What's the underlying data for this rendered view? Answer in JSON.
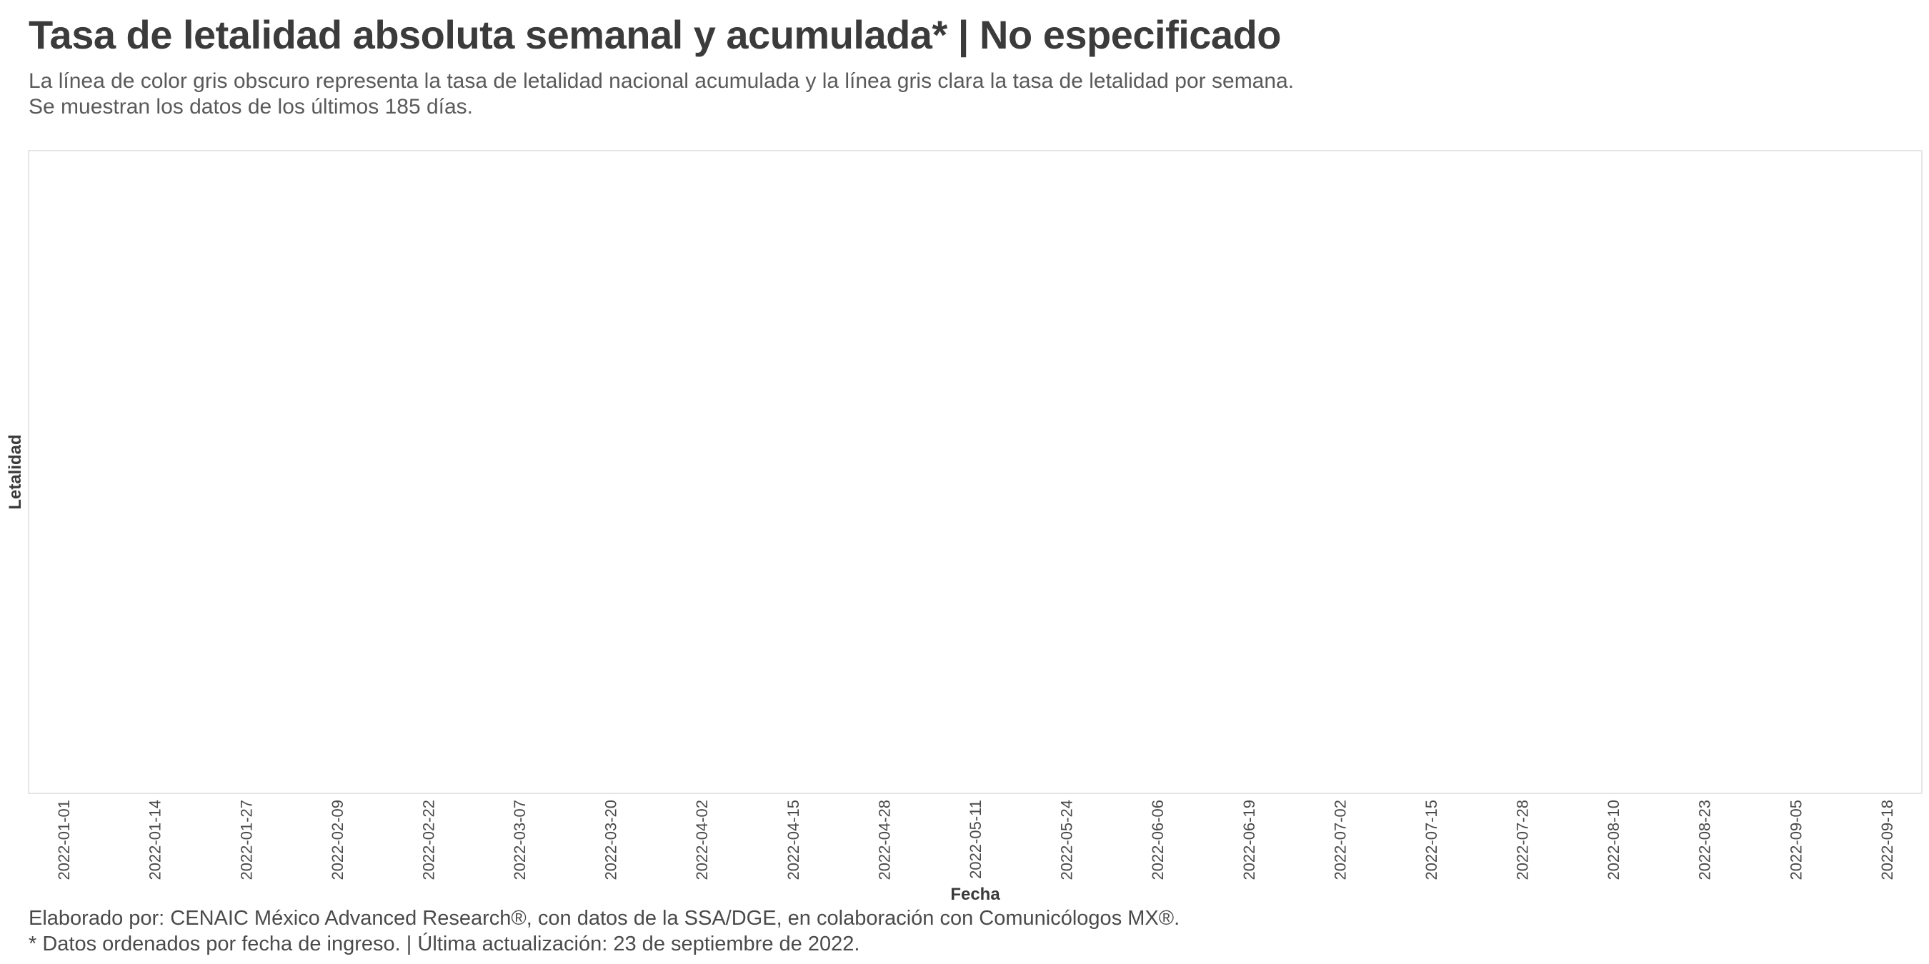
{
  "header": {
    "title": "Tasa de letalidad absoluta semanal y acumulada* | No especificado",
    "subtitle_line1": "La línea de color gris obscuro representa la tasa de letalidad nacional acumulada y la línea gris clara la tasa de letalidad por semana.",
    "subtitle_line2": "Se muestran los datos de los últimos 185 días."
  },
  "chart_data": {
    "type": "line",
    "xlabel": "Fecha",
    "ylabel": "Letalidad",
    "x_ticks": [
      "2022-01-01",
      "2022-01-14",
      "2022-01-27",
      "2022-02-09",
      "2022-02-22",
      "2022-03-07",
      "2022-03-20",
      "2022-04-02",
      "2022-04-15",
      "2022-04-28",
      "2022-05-11",
      "2022-05-24",
      "2022-06-06",
      "2022-06-19",
      "2022-07-02",
      "2022-07-15",
      "2022-07-28",
      "2022-08-10",
      "2022-08-23",
      "2022-09-05",
      "2022-09-18"
    ],
    "xlim": [
      "2021-12-27",
      "2022-09-23"
    ],
    "series": [],
    "grid": false,
    "colors": {
      "panel_border": "#e6e6e6",
      "text": "#3a3a3a"
    }
  },
  "footer": {
    "caption_line1": "Elaborado por: CENAIC México Advanced Research®, con datos de la SSA/DGE, en colaboración con Comunicólogos MX®.",
    "caption_line2": "* Datos ordenados por fecha de ingreso. | Última actualización: 23 de septiembre de 2022."
  }
}
